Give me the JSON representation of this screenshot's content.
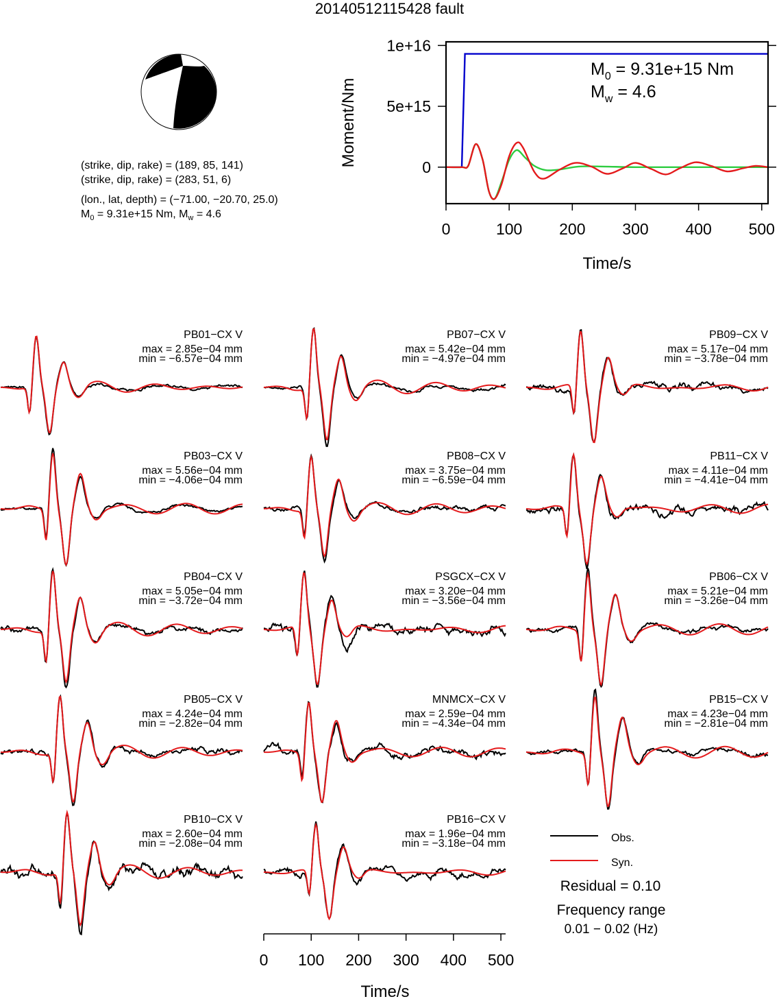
{
  "title": "20140512115428 fault",
  "info": {
    "line1": "(strike, dip, rake) = (189, 85, 141)",
    "line2": "(strike, dip, rake) = (283, 51, 6)",
    "line3": "(lon., lat, depth) = (−71.00, −20.70, 25.0)",
    "m0_label": "M",
    "m0_sub": "0",
    "line4_rest": " = 9.31e+15 Nm, M",
    "mw_sub": "w",
    "line4_end": " = 4.6"
  },
  "colors": {
    "observed": "#000000",
    "synthetic": "#e41a1c",
    "moment": "#0000cc",
    "moment_rate": "#2ecc40"
  },
  "chart_data": [
    {
      "type": "line",
      "name": "moment_function",
      "xlabel": "Time/s",
      "ylabel": "Moment/Nm",
      "xlim": [
        0,
        510
      ],
      "ylim": [
        -3000000000000000.0,
        1.03e+16
      ],
      "xticks": [
        "0",
        "100",
        "200",
        "300",
        "400",
        "500"
      ],
      "yticks": [
        "0",
        "5e+15",
        "1e+16"
      ],
      "annotation": {
        "m0_prefix": "M",
        "m0_sub": "0",
        "m0_text": " = 9.31e+15 Nm",
        "mw_prefix": "M",
        "mw_sub": "w",
        "mw_text": " = 4.6"
      },
      "series": [
        {
          "color": "blue",
          "x": [
            0,
            25,
            30,
            510
          ],
          "y": [
            0,
            0,
            9310000000000000.0,
            9310000000000000.0
          ]
        },
        {
          "color": "green",
          "x": [
            0,
            25,
            35,
            47,
            58,
            68,
            77,
            88,
            100,
            112,
            125,
            140,
            158,
            180,
            210,
            250,
            300,
            400,
            510
          ],
          "y": [
            0,
            0,
            100000000000000.0,
            1900000000000000.0,
            600000000000000.0,
            -2000000000000000.0,
            -2600000000000000.0,
            -1200000000000000.0,
            600000000000000.0,
            1400000000000000.0,
            800000000000000.0,
            100000000000000.0,
            -250000000000000.0,
            -200000000000000.0,
            50000000000000.0,
            50000000000000.0,
            0,
            0,
            0
          ]
        },
        {
          "color": "red",
          "x": [
            0,
            25,
            35,
            47,
            58,
            68,
            77,
            88,
            100,
            112,
            122,
            140,
            155,
            180,
            205,
            230,
            255,
            280,
            300,
            325,
            348,
            370,
            395,
            420,
            445,
            470,
            490,
            510
          ],
          "y": [
            0,
            0,
            100000000000000.0,
            1900000000000000.0,
            600000000000000.0,
            -2000000000000000.0,
            -2600000000000000.0,
            -1400000000000000.0,
            900000000000000.0,
            2000000000000000.0,
            1600000000000000.0,
            -400000000000000.0,
            -950000000000000.0,
            -200000000000000.0,
            350000000000000.0,
            50000000000000.0,
            -550000000000000.0,
            -100000000000000.0,
            350000000000000.0,
            -150000000000000.0,
            -600000000000000.0,
            -100000000000000.0,
            400000000000000.0,
            100000000000000.0,
            -350000000000000.0,
            -100000000000000.0,
            100000000000000.0,
            0
          ]
        }
      ]
    },
    {
      "type": "line",
      "name": "waveforms",
      "xlabel": "Time/s",
      "xlim": [
        0,
        510
      ],
      "xticks": [
        "0",
        "100",
        "200",
        "300",
        "400",
        "500"
      ],
      "stations": [
        {
          "label": "PB01−CX V",
          "max": "max = 2.85e−04 mm",
          "min": "min = −6.57e−04 mm",
          "peak_t": 75,
          "scale": 0.85,
          "noise": 0.25,
          "seed": 3
        },
        {
          "label": "PB07−CX V",
          "max": "max = 5.42e−04 mm",
          "min": "min = −4.97e−04 mm",
          "peak_t": 105,
          "scale": 1.0,
          "noise": 0.2,
          "seed": 7
        },
        {
          "label": "PB09−CX V",
          "max": "max = 5.17e−04 mm",
          "min": "min = −3.78e−04 mm",
          "peak_t": 115,
          "scale": 0.95,
          "noise": 0.5,
          "seed": 9
        },
        {
          "label": "PB03−CX V",
          "max": "max = 5.56e−04 mm",
          "min": "min = −4.06e−04 mm",
          "peak_t": 110,
          "scale": 1.0,
          "noise": 0.2,
          "seed": 11
        },
        {
          "label": "PB08−CX V",
          "max": "max = 3.75e−04 mm",
          "min": "min = −6.59e−04 mm",
          "peak_t": 100,
          "scale": 0.9,
          "noise": 0.35,
          "seed": 13
        },
        {
          "label": "PB11−CX V",
          "max": "max = 4.11e−04 mm",
          "min": "min = −4.41e−04 mm",
          "peak_t": 100,
          "scale": 0.95,
          "noise": 0.55,
          "seed": 17
        },
        {
          "label": "PB04−CX V",
          "max": "max = 5.05e−04 mm",
          "min": "min = −3.72e−04 mm",
          "peak_t": 110,
          "scale": 1.0,
          "noise": 0.35,
          "seed": 19
        },
        {
          "label": "PSGCX−CX V",
          "max": "max = 3.20e−04 mm",
          "min": "min = −3.56e−04 mm",
          "peak_t": 85,
          "scale": 0.95,
          "noise": 0.65,
          "seed": 23
        },
        {
          "label": "PB06−CX V",
          "max": "max = 5.21e−04 mm",
          "min": "min = −3.26e−04 mm",
          "peak_t": 130,
          "scale": 1.0,
          "noise": 0.3,
          "seed": 29
        },
        {
          "label": "PB05−CX V",
          "max": "max = 4.24e−04 mm",
          "min": "min = −2.82e−04 mm",
          "peak_t": 125,
          "scale": 0.95,
          "noise": 0.4,
          "seed": 31
        },
        {
          "label": "MNMCX−CX V",
          "max": "max = 2.59e−04 mm",
          "min": "min = −4.34e−04 mm",
          "peak_t": 95,
          "scale": 0.9,
          "noise": 0.6,
          "seed": 37
        },
        {
          "label": "PB15−CX V",
          "max": "max = 4.23e−04 mm",
          "min": "min = −2.81e−04 mm",
          "peak_t": 145,
          "scale": 1.0,
          "noise": 0.3,
          "seed": 41
        },
        {
          "label": "PB10−CX V",
          "max": "max = 2.60e−04 mm",
          "min": "min = −2.08e−04 mm",
          "peak_t": 140,
          "scale": 1.0,
          "noise": 0.75,
          "seed": 43
        },
        {
          "label": "PB16−CX V",
          "max": "max = 1.96e−04 mm",
          "min": "min = −3.18e−04 mm",
          "peak_t": 110,
          "scale": 0.8,
          "noise": 0.6,
          "seed": 47
        }
      ]
    }
  ],
  "legend": {
    "obs": "Obs.",
    "syn": "Syn.",
    "residual": "Residual = 0.10",
    "freq_title": "Frequency range",
    "freq_value": "0.01 − 0.02 (Hz)"
  }
}
